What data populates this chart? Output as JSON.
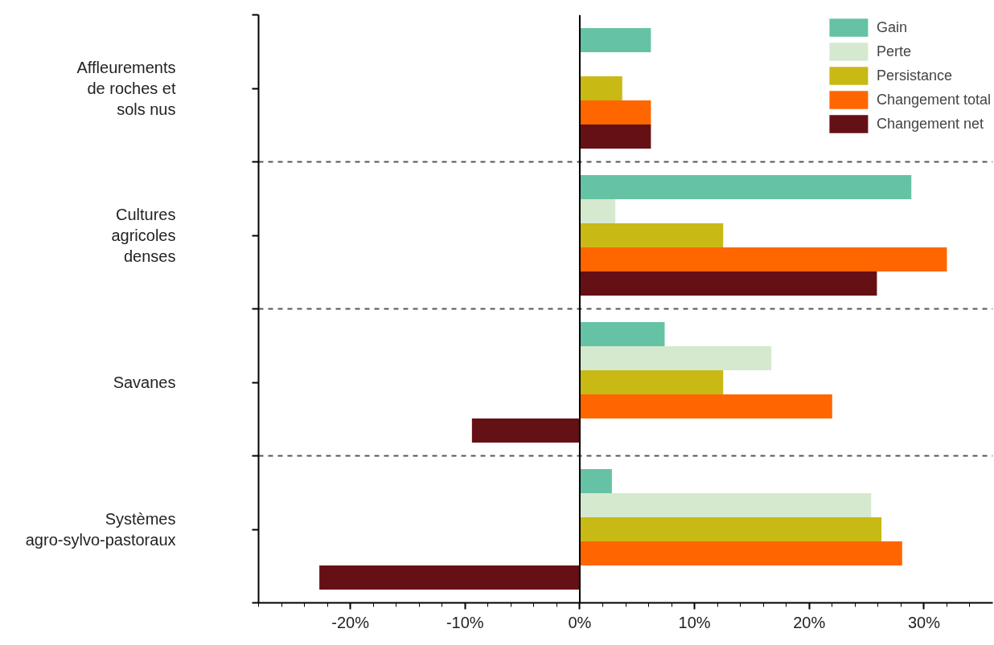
{
  "chart_data": {
    "type": "bar",
    "orientation": "horizontal",
    "categories": [
      "Affleurements de roches et sols nus",
      "Cultures agricoles denses",
      "Savanes",
      "Systèmes agro-sylvo-pastoraux"
    ],
    "series": [
      {
        "name": "Gain",
        "color": "#66c2a5",
        "values": [
          6.2,
          28.9,
          7.4,
          2.8
        ]
      },
      {
        "name": "Perte",
        "color": "#d5e9cf",
        "values": [
          0,
          3.1,
          16.7,
          25.4
        ]
      },
      {
        "name": "Persistance",
        "color": "#c8b914",
        "values": [
          3.7,
          12.5,
          12.5,
          26.3
        ]
      },
      {
        "name": "Changement total",
        "color": "#ff6600",
        "values": [
          6.2,
          32.0,
          22.0,
          28.1
        ]
      },
      {
        "name": "Changement net",
        "color": "#651015",
        "values": [
          6.2,
          25.9,
          -9.4,
          -22.7
        ]
      }
    ],
    "xlim": [
      -28,
      36
    ],
    "xticks": [
      {
        "value": -28,
        "label": null
      },
      {
        "value": -26,
        "label": null
      },
      {
        "value": -24,
        "label": null
      },
      {
        "value": -22,
        "label": null
      },
      {
        "value": -20,
        "label": "-20%"
      },
      {
        "value": -18,
        "label": null
      },
      {
        "value": -16,
        "label": null
      },
      {
        "value": -14,
        "label": null
      },
      {
        "value": -12,
        "label": null
      },
      {
        "value": -10,
        "label": "-10%"
      },
      {
        "value": -8,
        "label": null
      },
      {
        "value": -6,
        "label": null
      },
      {
        "value": -4,
        "label": null
      },
      {
        "value": -2,
        "label": null
      },
      {
        "value": 0,
        "label": "0%"
      },
      {
        "value": 2,
        "label": null
      },
      {
        "value": 4,
        "label": null
      },
      {
        "value": 6,
        "label": null
      },
      {
        "value": 8,
        "label": null
      },
      {
        "value": 10,
        "label": "10%"
      },
      {
        "value": 12,
        "label": null
      },
      {
        "value": 14,
        "label": null
      },
      {
        "value": 16,
        "label": null
      },
      {
        "value": 18,
        "label": null
      },
      {
        "value": 20,
        "label": "20%"
      },
      {
        "value": 22,
        "label": null
      },
      {
        "value": 24,
        "label": null
      },
      {
        "value": 26,
        "label": null
      },
      {
        "value": 28,
        "label": null
      },
      {
        "value": 30,
        "label": "30%"
      },
      {
        "value": 32,
        "label": null
      },
      {
        "value": 34,
        "label": null
      }
    ],
    "ref_lines": [
      {
        "axis": "x",
        "value": 0,
        "color": "#000000"
      }
    ],
    "grid": "y",
    "legend": "top right"
  }
}
